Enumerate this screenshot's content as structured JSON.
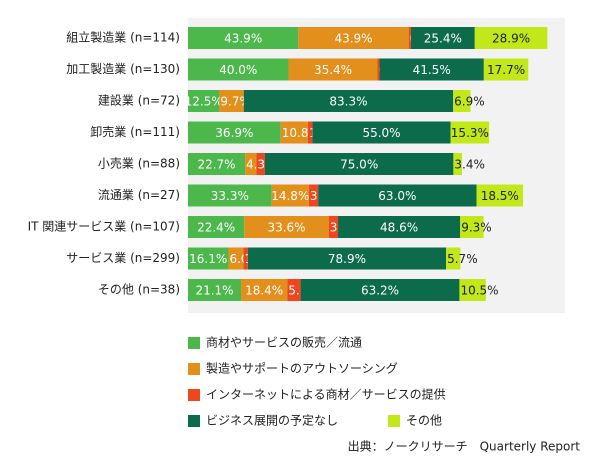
{
  "chart_data": {
    "type": "stacked-bar-horizontal",
    "categories": [
      "組立製造業 (n=114)",
      "加工製造業 (n=130)",
      "建設業 (n=72)",
      "卸売業 (n=111)",
      "小売業 (n=88)",
      "流通業 (n=27)",
      "IT 関連サービス業 (n=107)",
      "サービス業 (n=299)",
      "その他 (n=38)"
    ],
    "xlim": [
      0,
      150
    ],
    "series": [
      {
        "name": "商材やサービスの販売／流通",
        "color": "#4cb84c",
        "values": [
          43.9,
          40.0,
          12.5,
          36.9,
          22.7,
          33.3,
          22.4,
          16.1,
          21.1
        ],
        "value_labels": [
          "43.9%",
          "40.0%",
          "12.5%",
          "36.9%",
          "22.7%",
          "33.3%",
          "22.4%",
          "16.1%",
          "21.1%"
        ]
      },
      {
        "name": "製造やサポートのアウトソーシング",
        "color": "#e38f1c",
        "values": [
          43.9,
          35.4,
          9.7,
          10.8,
          4.5,
          14.8,
          33.6,
          6.0,
          18.4
        ],
        "value_labels": [
          "43.9%",
          "35.4%",
          "9.7%",
          "10.8%",
          "4.5%",
          "14.8%",
          "33.6%",
          "6.0%",
          "18.4%"
        ]
      },
      {
        "name": "インターネットによる商材／サービスの提供",
        "color": "#f0461e",
        "values": [
          0.9,
          0.8,
          null,
          1.8,
          3.4,
          3.7,
          3.7,
          1.7,
          5.3
        ],
        "value_labels": [
          "0.9%",
          "0.8%",
          null,
          "1.8%",
          "3.4%",
          "3.7%",
          "3.7%",
          "1.7%",
          "5.3%"
        ]
      },
      {
        "name": "ビジネス展開の予定なし",
        "color": "#0b6b4a",
        "values": [
          25.4,
          41.5,
          83.3,
          55.0,
          75.0,
          63.0,
          48.6,
          78.9,
          63.2
        ],
        "value_labels": [
          "25.4%",
          "41.5%",
          "83.3%",
          "55.0%",
          "75.0%",
          "63.0%",
          "48.6%",
          "78.9%",
          "63.2%"
        ]
      },
      {
        "name": "その他",
        "color": "#c3e81a",
        "values": [
          28.9,
          17.7,
          6.9,
          15.3,
          3.4,
          18.5,
          9.3,
          5.7,
          10.5
        ],
        "value_labels": [
          "28.9%",
          "17.7%",
          "6.9%",
          "15.3%",
          "3.4%",
          "18.5%",
          "9.3%",
          "5.7%",
          "10.5%"
        ]
      }
    ],
    "source": "出典：ノークリサーチ　Quarterly Report"
  }
}
